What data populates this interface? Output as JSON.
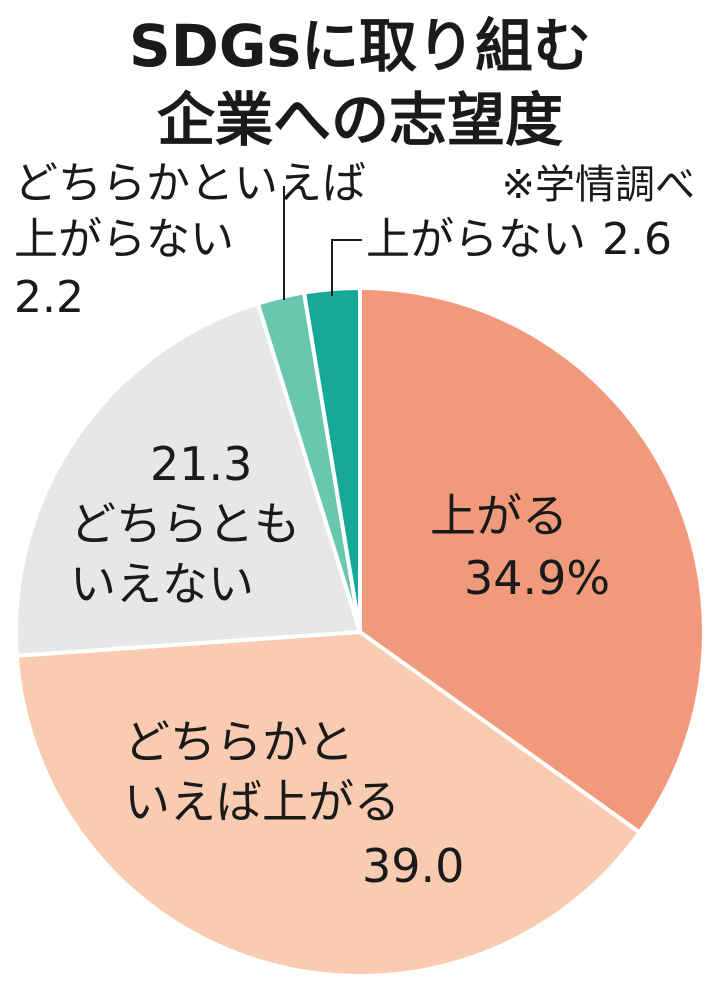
{
  "chart_data": {
    "type": "pie",
    "title_lines": [
      "SDGsに取り組む",
      "企業への志望度"
    ],
    "source_note": "※学情調べ",
    "start_angle_deg": 0,
    "direction": "clockwise",
    "slices": [
      {
        "label_lines": [
          "上がる"
        ],
        "value": 34.9,
        "value_text": "34.9%",
        "color": "#f19a7b"
      },
      {
        "label_lines": [
          "どちらかと",
          "いえば上がる"
        ],
        "value": 39.0,
        "value_text": "39.0",
        "color": "#f9cbb0"
      },
      {
        "label_lines": [
          "どちらとも",
          "いえない"
        ],
        "value": 21.3,
        "value_text": "21.3",
        "color": "#e6e7e9"
      },
      {
        "label_lines": [
          "どちらかといえば",
          "上がらない"
        ],
        "value": 2.2,
        "value_text": "2.2",
        "color": "#69c7ad"
      },
      {
        "label_lines": [
          "上がらない"
        ],
        "value": 2.6,
        "value_text": "2.6",
        "color": "#16a99a"
      }
    ]
  }
}
